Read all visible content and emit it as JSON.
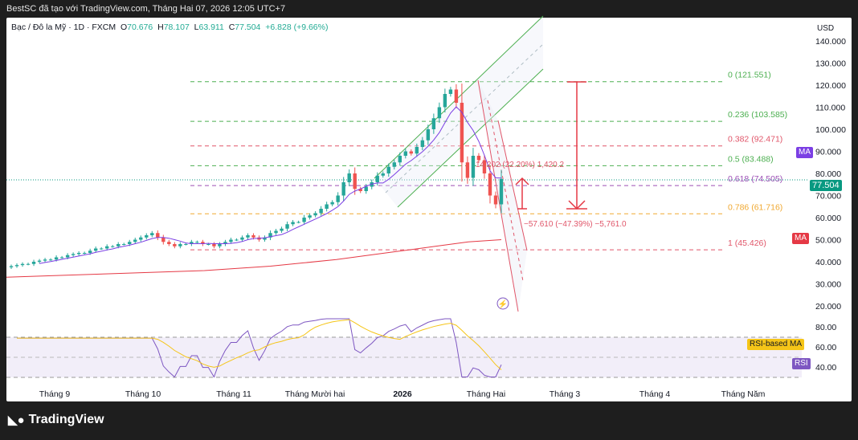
{
  "header": {
    "caption": "BestSC đã tạo với TradingView.com, Tháng Hai 07, 2026 12:05 UTC+7"
  },
  "legend": {
    "symbol": "Bạc / Đô la Mỹ · 1D · FXCM",
    "open_label": "O",
    "open": "70.676",
    "high_label": "H",
    "high": "78.107",
    "low_label": "L",
    "low": "63.911",
    "close_label": "C",
    "close": "77.504",
    "change": "+6.828 (+9.66%)"
  },
  "price_axis": {
    "currency": "USD",
    "ticks": [
      "140.000",
      "130.000",
      "120.000",
      "110.000",
      "100.000",
      "90.000",
      "80.000",
      "70.000",
      "60.000",
      "50.000",
      "40.000",
      "30.000",
      "20.000"
    ],
    "last_price": "77.504"
  },
  "rsi_axis": {
    "ticks": [
      "80.00",
      "60.00",
      "40.00"
    ]
  },
  "time_axis": {
    "ticks": [
      "Tháng 9",
      "Tháng 10",
      "Tháng 11",
      "Tháng Mười hai",
      "2026",
      "Tháng Hai",
      "Tháng 3",
      "Tháng 4",
      "Tháng Năm"
    ]
  },
  "badges": {
    "ma_fast": "MA",
    "ma_slow": "MA",
    "rsi_ma": "RSI-based MA",
    "rsi": "RSI"
  },
  "fib_levels": [
    {
      "label": "0 (121.551)",
      "price": 121.551,
      "color": "#4caf50"
    },
    {
      "label": "0.236 (103.585)",
      "price": 103.585,
      "color": "#4caf50"
    },
    {
      "label": "0.382 (92.471)",
      "price": 92.471,
      "color": "#e05569"
    },
    {
      "label": "0.5 (83.488)",
      "price": 83.488,
      "color": "#4caf50"
    },
    {
      "label": "0.618 (74.505)",
      "price": 74.505,
      "color": "#9c4fb5"
    },
    {
      "label": "0.786 (61.716)",
      "price": 61.716,
      "color": "#f0a830"
    },
    {
      "label": "1 (45.426)",
      "price": 45.426,
      "color": "#e05569"
    }
  ],
  "measures": {
    "up": "14.202 (22.20%) 1,420.2",
    "down": "−57.610 (−47.39%) −5,761.0"
  },
  "brand": {
    "name": "TradingView"
  },
  "colors": {
    "up": "#26a69a",
    "down": "#ef5350",
    "ma_fast": "#7b3fe4",
    "ma_slow": "#e53945",
    "rsi": "#7e57c2",
    "rsi_ma": "#f5c518",
    "price_badge": "#089981"
  },
  "chart_data": {
    "type": "candlestick",
    "title": "Bạc / Đô la Mỹ · 1D · FXCM",
    "ylabel": "USD",
    "ylim": [
      15,
      145
    ],
    "closes": [
      38,
      38.5,
      39,
      39,
      40,
      40.5,
      41,
      41,
      42,
      42,
      43,
      43.5,
      44,
      44,
      45,
      46,
      46,
      47,
      47,
      48,
      48,
      49,
      50,
      51,
      52,
      53,
      51,
      49,
      48,
      47,
      48,
      48,
      49,
      49,
      48,
      48,
      47,
      48,
      49,
      50,
      50,
      51,
      52,
      51,
      50,
      51,
      53,
      54,
      55,
      57,
      58,
      58,
      60,
      61,
      62,
      64,
      66,
      67,
      70,
      76,
      80,
      73,
      72,
      74,
      76,
      79,
      80,
      83,
      85,
      88,
      90,
      89,
      92,
      95,
      100,
      105,
      110,
      116,
      118,
      112,
      85,
      78,
      88,
      86,
      80,
      70,
      66,
      77.5
    ],
    "ma_slow": [
      33,
      33.5,
      34,
      34.5,
      35,
      35.5,
      36,
      37,
      38,
      39.5,
      41,
      43,
      45,
      47,
      49,
      50
    ],
    "rsi_range": [
      20,
      90
    ]
  }
}
